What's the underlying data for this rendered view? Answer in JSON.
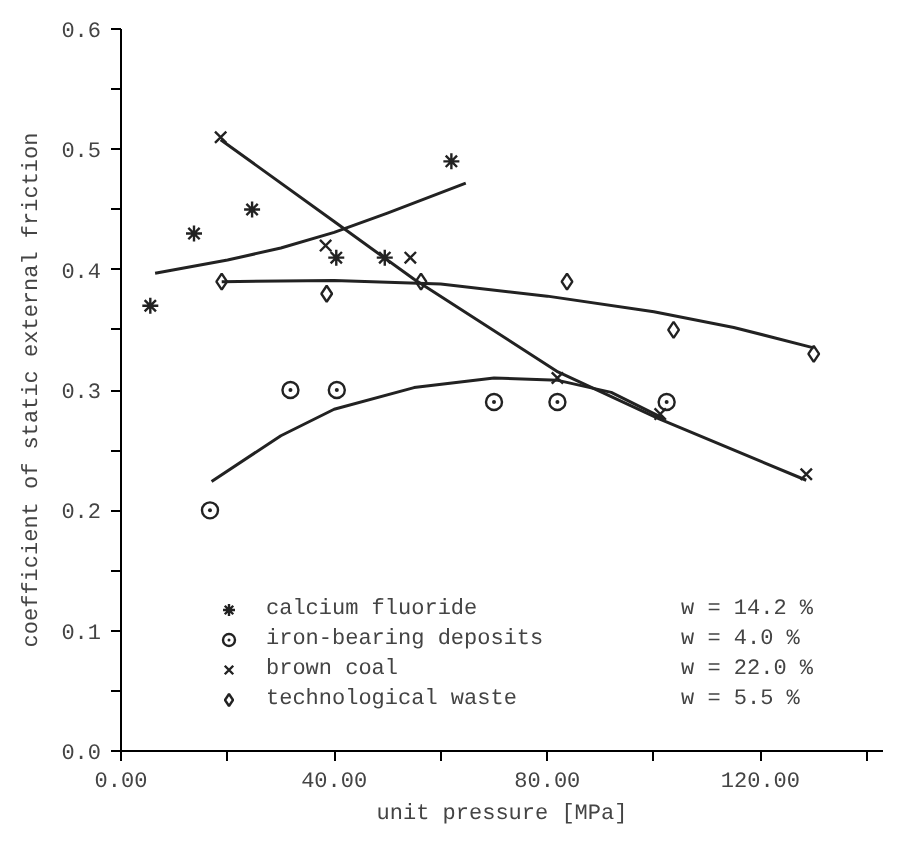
{
  "chart_data": {
    "type": "scatter",
    "xlabel": "unit pressure [MPa]",
    "ylabel": "coefficient of static external friction",
    "xlim": [
      0,
      143
    ],
    "ylim": [
      0,
      0.6
    ],
    "xticks": [
      {
        "value": 0,
        "label": "0.00"
      },
      {
        "value": 20,
        "label": null
      },
      {
        "value": 40,
        "label": "40.00"
      },
      {
        "value": 60,
        "label": null
      },
      {
        "value": 80,
        "label": "80.00"
      },
      {
        "value": 100,
        "label": null
      },
      {
        "value": 120,
        "label": "120.00"
      },
      {
        "value": 140,
        "label": null
      }
    ],
    "yticks": [
      {
        "value": 0,
        "label": "0.0"
      },
      {
        "value": 0.05,
        "label": null
      },
      {
        "value": 0.1,
        "label": "0.1"
      },
      {
        "value": 0.15,
        "label": null
      },
      {
        "value": 0.2,
        "label": "0.2"
      },
      {
        "value": 0.25,
        "label": null
      },
      {
        "value": 0.3,
        "label": "0.3"
      },
      {
        "value": 0.35,
        "label": null
      },
      {
        "value": 0.4,
        "label": "0.4"
      },
      {
        "value": 0.45,
        "label": null
      },
      {
        "value": 0.5,
        "label": "0.5"
      },
      {
        "value": 0.55,
        "label": null
      },
      {
        "value": 0.6,
        "label": "0.6"
      }
    ],
    "grid": false,
    "legend": "bottom",
    "series": [
      {
        "name": "calcium fluoride",
        "marker": "cross",
        "color": "#222222",
        "x": [
          5.5,
          13.7,
          24.6,
          40.4,
          49.5,
          62
        ],
        "values": [
          0.37,
          0.43,
          0.45,
          0.41,
          0.41,
          0.49
        ]
      },
      {
        "name": "iron-bearing deposits",
        "marker": "circle",
        "color": "#222222",
        "x": [
          16.7,
          31.8,
          40.5,
          70,
          81.9,
          102.4
        ],
        "values": [
          0.2,
          0.3,
          0.3,
          0.29,
          0.29,
          0.29
        ]
      },
      {
        "name": "brown coal",
        "marker": "x",
        "color": "#222222",
        "x": [
          18.7,
          38.4,
          54.3,
          81.9,
          101.2,
          128.6
        ],
        "values": [
          0.51,
          0.42,
          0.41,
          0.31,
          0.28,
          0.23
        ]
      },
      {
        "name": "technological waste",
        "marker": "diamond",
        "color": "#222222",
        "x": [
          18.9,
          38.6,
          56.3,
          83.7,
          103.7,
          130
        ],
        "values": [
          0.39,
          0.38,
          0.39,
          0.39,
          0.35,
          0.33
        ]
      },
      {
        "type": "line",
        "color": "#222222",
        "x": [
          6.4,
          20,
          30,
          40,
          50,
          64.7
        ],
        "values": [
          0.397,
          0.408,
          0.418,
          0.431,
          0.447,
          0.472
        ]
      },
      {
        "type": "line",
        "color": "#222222",
        "x": [
          17,
          30,
          40,
          55,
          70,
          82,
          92,
          102
        ],
        "values": [
          0.224,
          0.262,
          0.284,
          0.302,
          0.31,
          0.308,
          0.298,
          0.276
        ]
      },
      {
        "type": "line",
        "color": "#222222",
        "x": [
          18.7,
          40,
          55,
          82,
          101,
          128.6
        ],
        "values": [
          0.508,
          0.44,
          0.392,
          0.315,
          0.276,
          0.225
        ]
      },
      {
        "type": "line",
        "color": "#222222",
        "x": [
          18.9,
          40,
          60,
          80,
          100,
          115,
          130
        ],
        "values": [
          0.39,
          0.391,
          0.388,
          0.378,
          0.365,
          0.352,
          0.335
        ]
      }
    ],
    "annotations": [
      "w = 14.2 %",
      "w =  4.0 %",
      "w = 22.0 %",
      "w =  5.5 %"
    ]
  }
}
